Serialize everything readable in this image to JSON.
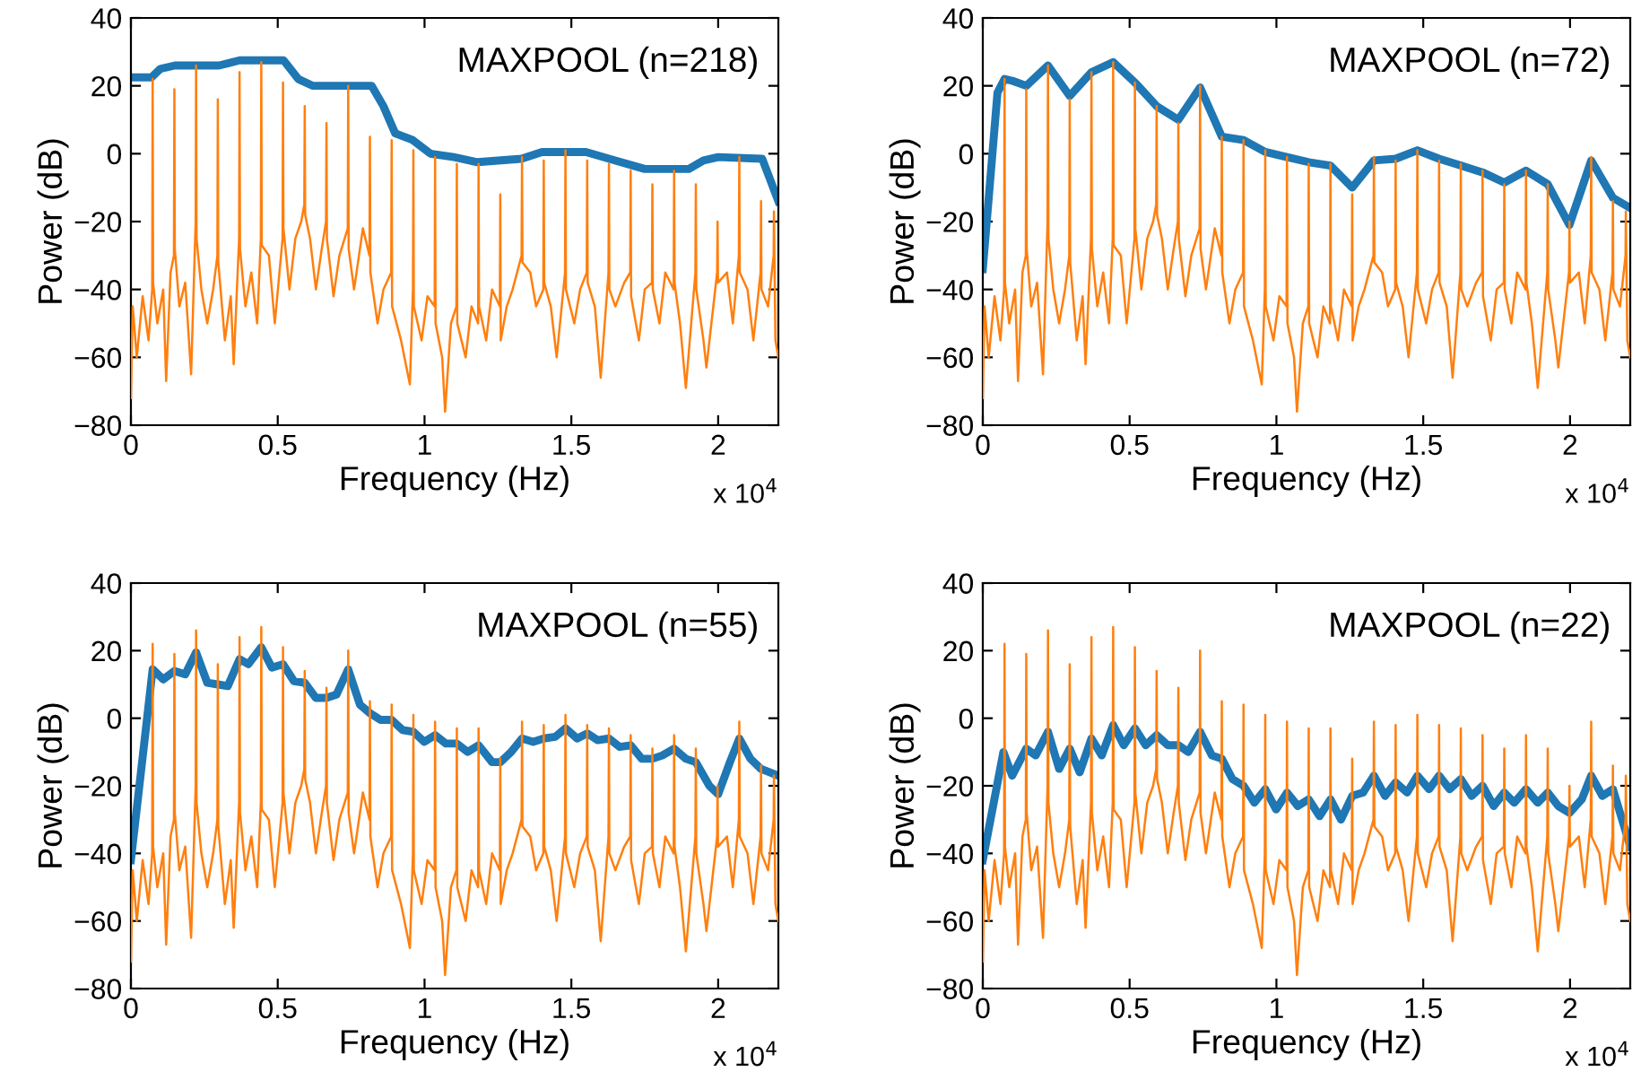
{
  "chart_data": [
    {
      "type": "line",
      "title": "MAXPOOL (n=218)",
      "xlabel": "Frequency (Hz)",
      "ylabel": "Power (dB)",
      "annotations": [
        "x 10$^{4}$"
      ],
      "xlim": [
        0,
        2.205
      ],
      "ylim": [
        -80,
        40
      ],
      "xticks": [
        0,
        0.5,
        1,
        1.5,
        2
      ],
      "yticks": [
        {
          "value": -80,
          "label": "−80"
        },
        {
          "value": -60,
          "label": "−60"
        },
        {
          "value": -40,
          "label": "−40"
        },
        {
          "value": -20,
          "label": "−20"
        },
        {
          "value": 0,
          "label": "0"
        },
        {
          "value": 20,
          "label": "20"
        },
        {
          "value": 40,
          "label": "40"
        }
      ],
      "grid": false,
      "series": [
        {
          "color": "#1f77b4",
          "x": [
            0,
            0.07,
            0.1,
            0.15,
            0.3,
            0.37,
            0.52,
            0.57,
            0.62,
            0.82,
            0.86,
            0.9,
            0.96,
            1.02,
            1.1,
            1.18,
            1.33,
            1.4,
            1.55,
            1.65,
            1.75,
            1.9,
            1.95,
            2,
            2.15,
            2.205
          ],
          "values": [
            22.5,
            22.5,
            25,
            26,
            26,
            27.5,
            27.5,
            22,
            20,
            20,
            14,
            6,
            4,
            0,
            -1,
            -2.5,
            -1.5,
            0.5,
            0.5,
            -2,
            -4.5,
            -4.5,
            -2,
            -1,
            -1.5,
            -14
          ]
        },
        {
          "color": "#ff7f0e",
          "x": [
            0,
            0.006,
            0.02,
            0.04,
            0.06,
            0.0725,
            0.074,
            0.0755,
            0.09,
            0.11,
            0.12,
            0.135,
            0.1465,
            0.148,
            0.1495,
            0.165,
            0.185,
            0.205,
            0.2205,
            0.222,
            0.2235,
            0.24,
            0.26,
            0.28,
            0.2945,
            0.296,
            0.2975,
            0.32,
            0.34,
            0.35,
            0.3685,
            0.37,
            0.3715,
            0.39,
            0.41,
            0.43,
            0.4425,
            0.444,
            0.4455,
            0.47,
            0.49,
            0.5165,
            0.518,
            0.5195,
            0.54,
            0.56,
            0.58,
            0.5905,
            0.592,
            0.5935,
            0.61,
            0.63,
            0.65,
            0.6645,
            0.666,
            0.6675,
            0.69,
            0.71,
            0.7385,
            0.74,
            0.7415,
            0.76,
            0.79,
            0.8125,
            0.814,
            0.8155,
            0.84,
            0.86,
            0.8865,
            0.888,
            0.8895,
            0.92,
            0.95,
            0.9605,
            0.962,
            0.9635,
            0.99,
            1.01,
            1.0345,
            1.036,
            1.0375,
            1.06,
            1.07,
            1.09,
            1.1085,
            1.11,
            1.1115,
            1.14,
            1.16,
            1.1825,
            1.184,
            1.1855,
            1.21,
            1.23,
            1.2565,
            1.258,
            1.2595,
            1.28,
            1.3,
            1.3305,
            1.332,
            1.3335,
            1.36,
            1.38,
            1.4045,
            1.406,
            1.4075,
            1.43,
            1.45,
            1.4785,
            1.48,
            1.4815,
            1.51,
            1.53,
            1.5525,
            1.554,
            1.5555,
            1.58,
            1.6,
            1.6265,
            1.628,
            1.6295,
            1.65,
            1.68,
            1.7005,
            1.702,
            1.7035,
            1.73,
            1.75,
            1.7745,
            1.776,
            1.7775,
            1.8,
            1.82,
            1.8485,
            1.85,
            1.8515,
            1.87,
            1.89,
            1.9225,
            1.924,
            1.9255,
            1.95,
            1.96,
            1.9965,
            1.998,
            1.9995,
            2.03,
            2.05,
            2.0705,
            2.072,
            2.0735,
            2.1,
            2.12,
            2.1445,
            2.146,
            2.1475,
            2.17,
            2.189,
            2.19,
            2.195,
            2.205
          ],
          "values": [
            -72,
            -45,
            -60,
            -42,
            -55,
            -40,
            22,
            -38,
            -50,
            -40,
            -67,
            -35,
            -30,
            19,
            -28,
            -45,
            -38,
            -65,
            -20,
            26,
            -25,
            -40,
            -50,
            -40,
            -30,
            16,
            -32,
            -55,
            -42,
            -62,
            -25,
            24,
            -28,
            -45,
            -35,
            -50,
            -25,
            27,
            -27,
            -30,
            -50,
            -25,
            21,
            -22,
            -40,
            -25,
            -20,
            -15,
            14,
            -18,
            -25,
            -40,
            -28,
            -20,
            9,
            -25,
            -42,
            -30,
            -22,
            20,
            -28,
            -40,
            -22,
            -30,
            5,
            -35,
            -50,
            -40,
            -35,
            4,
            -45,
            -55,
            -68,
            -40,
            1,
            -45,
            -55,
            -42,
            -45,
            -1,
            -50,
            -60,
            -76,
            -50,
            -45,
            -3,
            -50,
            -60,
            -45,
            -50,
            -3,
            -45,
            -55,
            -40,
            -45,
            -12,
            -55,
            -45,
            -40,
            -30,
            -1,
            -32,
            -35,
            -45,
            -40,
            -2,
            -38,
            -45,
            -60,
            -35,
            1,
            -40,
            -50,
            -40,
            -35,
            -2,
            -38,
            -45,
            -66,
            -35,
            -3,
            -40,
            -45,
            -38,
            -35,
            -5,
            -42,
            -55,
            -40,
            -38,
            -9,
            -40,
            -50,
            -35,
            -40,
            -5,
            -38,
            -50,
            -69,
            -35,
            -9,
            -40,
            -55,
            -63,
            -35,
            -20,
            -38,
            -35,
            -50,
            -30,
            -1,
            -35,
            -40,
            -55,
            -35,
            -14,
            -40,
            -45,
            -30,
            -17,
            -55,
            -60
          ]
        }
      ]
    },
    {
      "type": "line",
      "title": "MAXPOOL (n=72)",
      "xlabel": "Frequency (Hz)",
      "ylabel": "Power (dB)",
      "annotations": [
        "x 10$^{4}$"
      ],
      "xlim": [
        0,
        2.205
      ],
      "ylim": [
        -80,
        40
      ],
      "xticks": [
        0,
        0.5,
        1,
        1.5,
        2
      ],
      "yticks": [
        {
          "value": -80,
          "label": "−80"
        },
        {
          "value": -60,
          "label": "−60"
        },
        {
          "value": -40,
          "label": "−40"
        },
        {
          "value": -20,
          "label": "−20"
        },
        {
          "value": 0,
          "label": "0"
        },
        {
          "value": 20,
          "label": "20"
        },
        {
          "value": 40,
          "label": "40"
        }
      ],
      "grid": false,
      "series": [
        {
          "color": "#1f77b4",
          "x": [
            0,
            0.05,
            0.074,
            0.1,
            0.148,
            0.222,
            0.296,
            0.37,
            0.444,
            0.518,
            0.592,
            0.666,
            0.74,
            0.814,
            0.888,
            0.962,
            1.036,
            1.11,
            1.184,
            1.258,
            1.332,
            1.406,
            1.48,
            1.554,
            1.628,
            1.702,
            1.776,
            1.85,
            1.924,
            1.998,
            2.072,
            2.146,
            2.205
          ],
          "values": [
            -34,
            18,
            22,
            21.5,
            20,
            26,
            17,
            24,
            27,
            21,
            14,
            10,
            19.5,
            5,
            4,
            0.5,
            -1,
            -2.5,
            -3.5,
            -10,
            -2,
            -1.5,
            1,
            -1.5,
            -3.5,
            -5.5,
            -8.5,
            -5,
            -9,
            -21,
            -2,
            -13,
            -16
          ]
        },
        {
          "color": "#ff7f0e",
          "x": [
            0,
            0.006,
            0.02,
            0.04,
            0.06,
            0.0725,
            0.074,
            0.0755,
            0.09,
            0.11,
            0.12,
            0.135,
            0.1465,
            0.148,
            0.1495,
            0.165,
            0.185,
            0.205,
            0.2205,
            0.222,
            0.2235,
            0.24,
            0.26,
            0.28,
            0.2945,
            0.296,
            0.2975,
            0.32,
            0.34,
            0.35,
            0.3685,
            0.37,
            0.3715,
            0.39,
            0.41,
            0.43,
            0.4425,
            0.444,
            0.4455,
            0.47,
            0.49,
            0.5165,
            0.518,
            0.5195,
            0.54,
            0.56,
            0.58,
            0.5905,
            0.592,
            0.5935,
            0.61,
            0.63,
            0.65,
            0.6645,
            0.666,
            0.6675,
            0.69,
            0.71,
            0.7385,
            0.74,
            0.7415,
            0.76,
            0.79,
            0.8125,
            0.814,
            0.8155,
            0.84,
            0.86,
            0.8865,
            0.888,
            0.8895,
            0.92,
            0.95,
            0.9605,
            0.962,
            0.9635,
            0.99,
            1.01,
            1.0345,
            1.036,
            1.0375,
            1.06,
            1.07,
            1.09,
            1.1085,
            1.11,
            1.1115,
            1.14,
            1.16,
            1.1825,
            1.184,
            1.1855,
            1.21,
            1.23,
            1.2565,
            1.258,
            1.2595,
            1.28,
            1.3,
            1.3305,
            1.332,
            1.3335,
            1.36,
            1.38,
            1.4045,
            1.406,
            1.4075,
            1.43,
            1.45,
            1.4785,
            1.48,
            1.4815,
            1.51,
            1.53,
            1.5525,
            1.554,
            1.5555,
            1.58,
            1.6,
            1.6265,
            1.628,
            1.6295,
            1.65,
            1.68,
            1.7005,
            1.702,
            1.7035,
            1.73,
            1.75,
            1.7745,
            1.776,
            1.7775,
            1.8,
            1.82,
            1.8485,
            1.85,
            1.8515,
            1.87,
            1.89,
            1.9225,
            1.924,
            1.9255,
            1.95,
            1.96,
            1.9965,
            1.998,
            1.9995,
            2.03,
            2.05,
            2.0705,
            2.072,
            2.0735,
            2.1,
            2.12,
            2.1445,
            2.146,
            2.1475,
            2.17,
            2.189,
            2.19,
            2.195,
            2.205
          ],
          "values": [
            -72,
            -45,
            -60,
            -42,
            -55,
            -40,
            22,
            -38,
            -50,
            -40,
            -67,
            -35,
            -30,
            19,
            -28,
            -45,
            -38,
            -65,
            -20,
            26,
            -25,
            -40,
            -50,
            -40,
            -30,
            16,
            -32,
            -55,
            -42,
            -62,
            -25,
            24,
            -28,
            -45,
            -35,
            -50,
            -25,
            27,
            -27,
            -30,
            -50,
            -25,
            21,
            -22,
            -40,
            -25,
            -20,
            -15,
            14,
            -18,
            -25,
            -40,
            -28,
            -20,
            9,
            -25,
            -42,
            -30,
            -22,
            20,
            -28,
            -40,
            -22,
            -30,
            5,
            -35,
            -50,
            -40,
            -35,
            4,
            -45,
            -55,
            -68,
            -40,
            1,
            -45,
            -55,
            -42,
            -45,
            -1,
            -50,
            -60,
            -76,
            -50,
            -45,
            -3,
            -50,
            -60,
            -45,
            -50,
            -3,
            -45,
            -55,
            -40,
            -45,
            -12,
            -55,
            -45,
            -40,
            -30,
            -1,
            -32,
            -35,
            -45,
            -40,
            -2,
            -38,
            -45,
            -60,
            -35,
            1,
            -40,
            -50,
            -40,
            -35,
            -2,
            -38,
            -45,
            -66,
            -35,
            -3,
            -40,
            -45,
            -38,
            -35,
            -5,
            -42,
            -55,
            -40,
            -38,
            -9,
            -40,
            -50,
            -35,
            -40,
            -5,
            -38,
            -50,
            -69,
            -35,
            -9,
            -40,
            -55,
            -63,
            -35,
            -20,
            -38,
            -35,
            -50,
            -30,
            -1,
            -35,
            -40,
            -55,
            -35,
            -14,
            -40,
            -45,
            -30,
            -17,
            -55,
            -60
          ]
        }
      ]
    },
    {
      "type": "line",
      "title": "MAXPOOL (n=55)",
      "xlabel": "Frequency (Hz)",
      "ylabel": "Power (dB)",
      "annotations": [
        "x 10$^{4}$"
      ],
      "xlim": [
        0,
        2.205
      ],
      "ylim": [
        -80,
        40
      ],
      "xticks": [
        0,
        0.5,
        1,
        1.5,
        2
      ],
      "yticks": [
        {
          "value": -80,
          "label": "−80"
        },
        {
          "value": -60,
          "label": "−60"
        },
        {
          "value": -40,
          "label": "−40"
        },
        {
          "value": -20,
          "label": "−20"
        },
        {
          "value": 0,
          "label": "0"
        },
        {
          "value": 20,
          "label": "20"
        },
        {
          "value": 40,
          "label": "40"
        }
      ],
      "grid": false,
      "series": [
        {
          "color": "#1f77b4",
          "x": [
            0,
            0.074,
            0.11,
            0.148,
            0.185,
            0.222,
            0.26,
            0.296,
            0.33,
            0.37,
            0.4,
            0.444,
            0.48,
            0.518,
            0.555,
            0.592,
            0.63,
            0.666,
            0.7,
            0.74,
            0.78,
            0.814,
            0.85,
            0.888,
            0.925,
            0.962,
            0.999,
            1.036,
            1.073,
            1.11,
            1.147,
            1.184,
            1.23,
            1.258,
            1.295,
            1.332,
            1.37,
            1.406,
            1.445,
            1.48,
            1.52,
            1.554,
            1.59,
            1.628,
            1.665,
            1.702,
            1.74,
            1.776,
            1.81,
            1.85,
            1.89,
            1.924,
            1.97,
            2,
            2.04,
            2.072,
            2.11,
            2.146,
            2.205
          ],
          "values": [
            -42,
            14.5,
            11.5,
            14,
            13,
            19.5,
            10.5,
            10,
            9.5,
            17.5,
            16,
            21,
            15,
            16,
            11,
            10.5,
            6,
            6,
            7,
            14.5,
            4,
            1.5,
            -0.5,
            -0.5,
            -3.5,
            -4,
            -7,
            -5,
            -7.5,
            -7.5,
            -10,
            -8,
            -13,
            -13,
            -10,
            -6,
            -7,
            -6,
            -5.5,
            -3,
            -6,
            -4.5,
            -6.5,
            -6,
            -8.5,
            -8,
            -12,
            -12,
            -11,
            -9,
            -12,
            -13,
            -20,
            -22.5,
            -13,
            -6,
            -12,
            -15,
            -17
          ]
        },
        {
          "color": "#ff7f0e",
          "x": [
            0,
            0.006,
            0.02,
            0.04,
            0.06,
            0.0725,
            0.074,
            0.0755,
            0.09,
            0.11,
            0.12,
            0.135,
            0.1465,
            0.148,
            0.1495,
            0.165,
            0.185,
            0.205,
            0.2205,
            0.222,
            0.2235,
            0.24,
            0.26,
            0.28,
            0.2945,
            0.296,
            0.2975,
            0.32,
            0.34,
            0.35,
            0.3685,
            0.37,
            0.3715,
            0.39,
            0.41,
            0.43,
            0.4425,
            0.444,
            0.4455,
            0.47,
            0.49,
            0.5165,
            0.518,
            0.5195,
            0.54,
            0.56,
            0.58,
            0.5905,
            0.592,
            0.5935,
            0.61,
            0.63,
            0.65,
            0.6645,
            0.666,
            0.6675,
            0.69,
            0.71,
            0.7385,
            0.74,
            0.7415,
            0.76,
            0.79,
            0.8125,
            0.814,
            0.8155,
            0.84,
            0.86,
            0.8865,
            0.888,
            0.8895,
            0.92,
            0.95,
            0.9605,
            0.962,
            0.9635,
            0.99,
            1.01,
            1.0345,
            1.036,
            1.0375,
            1.06,
            1.07,
            1.09,
            1.1085,
            1.11,
            1.1115,
            1.14,
            1.16,
            1.1825,
            1.184,
            1.1855,
            1.21,
            1.23,
            1.2565,
            1.258,
            1.2595,
            1.28,
            1.3,
            1.3305,
            1.332,
            1.3335,
            1.36,
            1.38,
            1.4045,
            1.406,
            1.4075,
            1.43,
            1.45,
            1.4785,
            1.48,
            1.4815,
            1.51,
            1.53,
            1.5525,
            1.554,
            1.5555,
            1.58,
            1.6,
            1.6265,
            1.628,
            1.6295,
            1.65,
            1.68,
            1.7005,
            1.702,
            1.7035,
            1.73,
            1.75,
            1.7745,
            1.776,
            1.7775,
            1.8,
            1.82,
            1.8485,
            1.85,
            1.8515,
            1.87,
            1.89,
            1.9225,
            1.924,
            1.9255,
            1.95,
            1.96,
            1.9965,
            1.998,
            1.9995,
            2.03,
            2.05,
            2.0705,
            2.072,
            2.0735,
            2.1,
            2.12,
            2.1445,
            2.146,
            2.1475,
            2.17,
            2.189,
            2.19,
            2.195,
            2.205
          ],
          "values": [
            -72,
            -45,
            -60,
            -42,
            -55,
            -40,
            22,
            -38,
            -50,
            -40,
            -67,
            -35,
            -30,
            19,
            -28,
            -45,
            -38,
            -65,
            -20,
            26,
            -25,
            -40,
            -50,
            -40,
            -30,
            16,
            -32,
            -55,
            -42,
            -62,
            -25,
            24,
            -28,
            -45,
            -35,
            -50,
            -25,
            27,
            -27,
            -30,
            -50,
            -25,
            21,
            -22,
            -40,
            -25,
            -20,
            -15,
            14,
            -18,
            -25,
            -40,
            -28,
            -20,
            9,
            -25,
            -42,
            -30,
            -22,
            20,
            -28,
            -40,
            -22,
            -30,
            5,
            -35,
            -50,
            -40,
            -35,
            4,
            -45,
            -55,
            -68,
            -40,
            1,
            -45,
            -55,
            -42,
            -45,
            -1,
            -50,
            -60,
            -76,
            -50,
            -45,
            -3,
            -50,
            -60,
            -45,
            -50,
            -3,
            -45,
            -55,
            -40,
            -45,
            -12,
            -55,
            -45,
            -40,
            -30,
            -1,
            -32,
            -35,
            -45,
            -40,
            -2,
            -38,
            -45,
            -60,
            -35,
            1,
            -40,
            -50,
            -40,
            -35,
            -2,
            -38,
            -45,
            -66,
            -35,
            -3,
            -40,
            -45,
            -38,
            -35,
            -5,
            -42,
            -55,
            -40,
            -38,
            -9,
            -40,
            -50,
            -35,
            -40,
            -5,
            -38,
            -50,
            -69,
            -35,
            -9,
            -40,
            -55,
            -63,
            -35,
            -20,
            -38,
            -35,
            -50,
            -30,
            -1,
            -35,
            -40,
            -55,
            -35,
            -14,
            -40,
            -45,
            -30,
            -17,
            -55,
            -60
          ]
        }
      ]
    },
    {
      "type": "line",
      "title": "MAXPOOL (n=22)",
      "xlabel": "Frequency (Hz)",
      "ylabel": "Power (dB)",
      "annotations": [
        "x 10$^{4}$"
      ],
      "xlim": [
        0,
        2.205
      ],
      "ylim": [
        -80,
        40
      ],
      "xticks": [
        0,
        0.5,
        1,
        1.5,
        2
      ],
      "yticks": [
        {
          "value": -80,
          "label": "−80"
        },
        {
          "value": -60,
          "label": "−60"
        },
        {
          "value": -40,
          "label": "−40"
        },
        {
          "value": -20,
          "label": "−20"
        },
        {
          "value": 0,
          "label": "0"
        },
        {
          "value": 20,
          "label": "20"
        },
        {
          "value": 40,
          "label": "40"
        }
      ],
      "grid": false,
      "series": [
        {
          "color": "#1f77b4",
          "x": [
            0,
            0.07,
            0.1,
            0.148,
            0.18,
            0.222,
            0.26,
            0.296,
            0.33,
            0.37,
            0.405,
            0.444,
            0.48,
            0.518,
            0.555,
            0.592,
            0.63,
            0.666,
            0.7,
            0.74,
            0.78,
            0.814,
            0.85,
            0.888,
            0.925,
            0.962,
            0.999,
            1.036,
            1.073,
            1.11,
            1.147,
            1.184,
            1.22,
            1.258,
            1.295,
            1.332,
            1.37,
            1.406,
            1.445,
            1.48,
            1.52,
            1.554,
            1.59,
            1.628,
            1.665,
            1.702,
            1.74,
            1.776,
            1.81,
            1.85,
            1.89,
            1.924,
            1.96,
            1.998,
            2.04,
            2.072,
            2.11,
            2.146,
            2.205
          ],
          "values": [
            -42,
            -10,
            -17,
            -9,
            -11,
            -4,
            -15,
            -9,
            -16,
            -6,
            -11,
            -2,
            -8,
            -3,
            -8,
            -5,
            -8,
            -8,
            -10,
            -4,
            -11,
            -12,
            -18,
            -20,
            -25,
            -21,
            -27,
            -22,
            -26,
            -24,
            -29,
            -24,
            -30,
            -23,
            -22,
            -17,
            -23,
            -19,
            -22,
            -17,
            -21,
            -17,
            -21,
            -18,
            -23,
            -20,
            -26,
            -22,
            -25,
            -21,
            -25,
            -22,
            -26,
            -28,
            -24,
            -17,
            -23,
            -21,
            -38
          ]
        },
        {
          "color": "#ff7f0e",
          "x": [
            0,
            0.006,
            0.02,
            0.04,
            0.06,
            0.0725,
            0.074,
            0.0755,
            0.09,
            0.11,
            0.12,
            0.135,
            0.1465,
            0.148,
            0.1495,
            0.165,
            0.185,
            0.205,
            0.2205,
            0.222,
            0.2235,
            0.24,
            0.26,
            0.28,
            0.2945,
            0.296,
            0.2975,
            0.32,
            0.34,
            0.35,
            0.3685,
            0.37,
            0.3715,
            0.39,
            0.41,
            0.43,
            0.4425,
            0.444,
            0.4455,
            0.47,
            0.49,
            0.5165,
            0.518,
            0.5195,
            0.54,
            0.56,
            0.58,
            0.5905,
            0.592,
            0.5935,
            0.61,
            0.63,
            0.65,
            0.6645,
            0.666,
            0.6675,
            0.69,
            0.71,
            0.7385,
            0.74,
            0.7415,
            0.76,
            0.79,
            0.8125,
            0.814,
            0.8155,
            0.84,
            0.86,
            0.8865,
            0.888,
            0.8895,
            0.92,
            0.95,
            0.9605,
            0.962,
            0.9635,
            0.99,
            1.01,
            1.0345,
            1.036,
            1.0375,
            1.06,
            1.07,
            1.09,
            1.1085,
            1.11,
            1.1115,
            1.14,
            1.16,
            1.1825,
            1.184,
            1.1855,
            1.21,
            1.23,
            1.2565,
            1.258,
            1.2595,
            1.28,
            1.3,
            1.3305,
            1.332,
            1.3335,
            1.36,
            1.38,
            1.4045,
            1.406,
            1.4075,
            1.43,
            1.45,
            1.4785,
            1.48,
            1.4815,
            1.51,
            1.53,
            1.5525,
            1.554,
            1.5555,
            1.58,
            1.6,
            1.6265,
            1.628,
            1.6295,
            1.65,
            1.68,
            1.7005,
            1.702,
            1.7035,
            1.73,
            1.75,
            1.7745,
            1.776,
            1.7775,
            1.8,
            1.82,
            1.8485,
            1.85,
            1.8515,
            1.87,
            1.89,
            1.9225,
            1.924,
            1.9255,
            1.95,
            1.96,
            1.9965,
            1.998,
            1.9995,
            2.03,
            2.05,
            2.0705,
            2.072,
            2.0735,
            2.1,
            2.12,
            2.1445,
            2.146,
            2.1475,
            2.17,
            2.189,
            2.19,
            2.195,
            2.205
          ],
          "values": [
            -72,
            -45,
            -60,
            -42,
            -55,
            -40,
            22,
            -38,
            -50,
            -40,
            -67,
            -35,
            -30,
            19,
            -28,
            -45,
            -38,
            -65,
            -20,
            26,
            -25,
            -40,
            -50,
            -40,
            -30,
            16,
            -32,
            -55,
            -42,
            -62,
            -25,
            24,
            -28,
            -45,
            -35,
            -50,
            -25,
            27,
            -27,
            -30,
            -50,
            -25,
            21,
            -22,
            -40,
            -25,
            -20,
            -15,
            14,
            -18,
            -25,
            -40,
            -28,
            -20,
            9,
            -25,
            -42,
            -30,
            -22,
            20,
            -28,
            -40,
            -22,
            -30,
            5,
            -35,
            -50,
            -40,
            -35,
            4,
            -45,
            -55,
            -68,
            -40,
            1,
            -45,
            -55,
            -42,
            -45,
            -1,
            -50,
            -60,
            -76,
            -50,
            -45,
            -3,
            -50,
            -60,
            -45,
            -50,
            -3,
            -45,
            -55,
            -40,
            -45,
            -12,
            -55,
            -45,
            -40,
            -30,
            -1,
            -32,
            -35,
            -45,
            -40,
            -2,
            -38,
            -45,
            -60,
            -35,
            1,
            -40,
            -50,
            -40,
            -35,
            -2,
            -38,
            -45,
            -66,
            -35,
            -3,
            -40,
            -45,
            -38,
            -35,
            -5,
            -42,
            -55,
            -40,
            -38,
            -9,
            -40,
            -50,
            -35,
            -40,
            -5,
            -38,
            -50,
            -69,
            -35,
            -9,
            -40,
            -55,
            -63,
            -35,
            -20,
            -38,
            -35,
            -50,
            -30,
            -1,
            -35,
            -40,
            -55,
            -35,
            -14,
            -40,
            -45,
            -30,
            -17,
            -55,
            -60
          ]
        }
      ]
    }
  ]
}
